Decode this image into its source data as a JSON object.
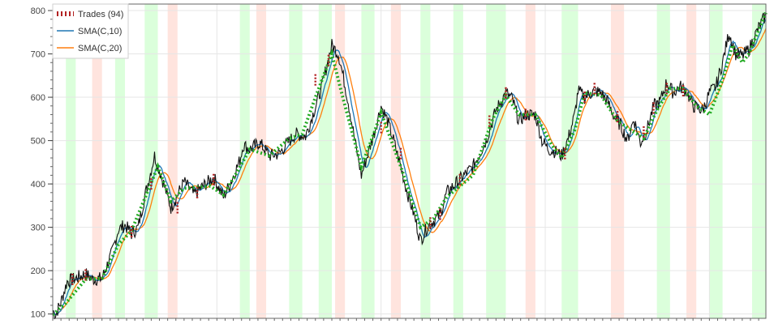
{
  "chart_data": {
    "type": "line",
    "title": "",
    "xlabel": "",
    "ylabel": "",
    "ylim": [
      90,
      815
    ],
    "y_ticks": [
      100,
      200,
      300,
      400,
      500,
      600,
      700,
      800
    ],
    "y_tick_labels": [
      "100",
      "200",
      "300",
      "400",
      "500",
      "600",
      "700",
      "800"
    ],
    "grid": true,
    "legend_position": "top-left",
    "legend": [
      {
        "label": "Trades (94)",
        "color": "#b22222",
        "style": "dashed"
      },
      {
        "label": "SMA(C,10)",
        "color": "#1f77b4",
        "style": "solid"
      },
      {
        "label": "SMA(C,20)",
        "color": "#ff7f0e",
        "style": "solid"
      }
    ],
    "price_path": [
      [
        0,
        108
      ],
      [
        0.004,
        98
      ],
      [
        0.012,
        125
      ],
      [
        0.022,
        175
      ],
      [
        0.035,
        182
      ],
      [
        0.05,
        193
      ],
      [
        0.06,
        180
      ],
      [
        0.075,
        182
      ],
      [
        0.09,
        240
      ],
      [
        0.1,
        295
      ],
      [
        0.11,
        305
      ],
      [
        0.12,
        285
      ],
      [
        0.13,
        300
      ],
      [
        0.14,
        370
      ],
      [
        0.155,
        465
      ],
      [
        0.165,
        420
      ],
      [
        0.18,
        345
      ],
      [
        0.2,
        405
      ],
      [
        0.215,
        375
      ],
      [
        0.225,
        390
      ],
      [
        0.245,
        415
      ],
      [
        0.26,
        370
      ],
      [
        0.27,
        400
      ],
      [
        0.285,
        455
      ],
      [
        0.29,
        490
      ],
      [
        0.3,
        480
      ],
      [
        0.315,
        495
      ],
      [
        0.33,
        465
      ],
      [
        0.345,
        470
      ],
      [
        0.355,
        490
      ],
      [
        0.37,
        515
      ],
      [
        0.385,
        510
      ],
      [
        0.395,
        555
      ],
      [
        0.41,
        625
      ],
      [
        0.42,
        690
      ],
      [
        0.425,
        720
      ],
      [
        0.435,
        700
      ],
      [
        0.44,
        665
      ],
      [
        0.45,
        590
      ],
      [
        0.46,
        500
      ],
      [
        0.47,
        420
      ],
      [
        0.48,
        470
      ],
      [
        0.49,
        520
      ],
      [
        0.5,
        580
      ],
      [
        0.51,
        545
      ],
      [
        0.52,
        495
      ],
      [
        0.53,
        440
      ],
      [
        0.54,
        380
      ],
      [
        0.55,
        330
      ],
      [
        0.56,
        270
      ],
      [
        0.57,
        300
      ],
      [
        0.58,
        315
      ],
      [
        0.59,
        330
      ],
      [
        0.6,
        380
      ],
      [
        0.62,
        410
      ],
      [
        0.64,
        440
      ],
      [
        0.66,
        500
      ],
      [
        0.675,
        570
      ],
      [
        0.69,
        610
      ],
      [
        0.7,
        595
      ],
      [
        0.71,
        545
      ],
      [
        0.72,
        560
      ],
      [
        0.735,
        560
      ],
      [
        0.745,
        500
      ],
      [
        0.755,
        480
      ],
      [
        0.765,
        475
      ],
      [
        0.775,
        465
      ],
      [
        0.785,
        505
      ],
      [
        0.795,
        560
      ],
      [
        0.8,
        615
      ],
      [
        0.81,
        600
      ],
      [
        0.825,
        615
      ],
      [
        0.835,
        610
      ],
      [
        0.845,
        590
      ],
      [
        0.855,
        555
      ],
      [
        0.865,
        535
      ],
      [
        0.875,
        500
      ],
      [
        0.885,
        550
      ],
      [
        0.895,
        495
      ],
      [
        0.905,
        525
      ],
      [
        0.915,
        580
      ],
      [
        0.925,
        590
      ],
      [
        0.935,
        635
      ],
      [
        0.945,
        610
      ],
      [
        0.955,
        625
      ],
      [
        0.965,
        615
      ],
      [
        0.975,
        580
      ],
      [
        0.99,
        570
      ],
      [
        1.0,
        610
      ],
      [
        1.01,
        625
      ],
      [
        1.02,
        680
      ],
      [
        1.03,
        750
      ],
      [
        1.04,
        700
      ],
      [
        1.05,
        695
      ],
      [
        1.06,
        710
      ],
      [
        1.075,
        760
      ],
      [
        1.086,
        790
      ]
    ],
    "trend_line": [
      [
        0,
        98
      ],
      [
        0.02,
        125
      ],
      [
        0.05,
        180
      ],
      [
        0.075,
        182
      ],
      [
        0.1,
        260
      ],
      [
        0.12,
        292
      ],
      [
        0.16,
        440
      ],
      [
        0.18,
        360
      ],
      [
        0.2,
        390
      ],
      [
        0.24,
        395
      ],
      [
        0.26,
        375
      ],
      [
        0.28,
        425
      ],
      [
        0.3,
        480
      ],
      [
        0.33,
        465
      ],
      [
        0.36,
        505
      ],
      [
        0.38,
        515
      ],
      [
        0.4,
        600
      ],
      [
        0.425,
        700
      ],
      [
        0.44,
        610
      ],
      [
        0.47,
        440
      ],
      [
        0.49,
        520
      ],
      [
        0.5,
        565
      ],
      [
        0.53,
        440
      ],
      [
        0.56,
        300
      ],
      [
        0.58,
        320
      ],
      [
        0.6,
        370
      ],
      [
        0.64,
        420
      ],
      [
        0.67,
        550
      ],
      [
        0.69,
        605
      ],
      [
        0.71,
        560
      ],
      [
        0.735,
        560
      ],
      [
        0.76,
        490
      ],
      [
        0.775,
        460
      ],
      [
        0.795,
        525
      ],
      [
        0.81,
        610
      ],
      [
        0.835,
        605
      ],
      [
        0.86,
        545
      ],
      [
        0.885,
        520
      ],
      [
        0.9,
        505
      ],
      [
        0.92,
        570
      ],
      [
        0.94,
        620
      ],
      [
        0.96,
        620
      ],
      [
        0.98,
        580
      ],
      [
        1.0,
        560
      ],
      [
        1.02,
        640
      ],
      [
        1.035,
        720
      ],
      [
        1.05,
        680
      ],
      [
        1.06,
        700
      ],
      [
        1.086,
        795
      ]
    ],
    "positive_regions": [
      [
        0.02,
        0.035
      ],
      [
        0.095,
        0.11
      ],
      [
        0.14,
        0.16
      ],
      [
        0.285,
        0.3
      ],
      [
        0.36,
        0.38
      ],
      [
        0.405,
        0.425
      ],
      [
        0.47,
        0.49
      ],
      [
        0.56,
        0.575
      ],
      [
        0.61,
        0.625
      ],
      [
        0.66,
        0.69
      ],
      [
        0.775,
        0.8
      ],
      [
        0.92,
        0.94
      ],
      [
        1.0,
        1.02
      ],
      [
        1.065,
        1.086
      ]
    ],
    "negative_regions": [
      [
        0.06,
        0.075
      ],
      [
        0.175,
        0.19
      ],
      [
        0.31,
        0.325
      ],
      [
        0.43,
        0.445
      ],
      [
        0.515,
        0.53
      ],
      [
        0.72,
        0.735
      ],
      [
        0.85,
        0.87
      ],
      [
        0.965,
        0.98
      ]
    ],
    "trade_markers": [
      [
        0.03,
        180
      ],
      [
        0.05,
        190
      ],
      [
        0.12,
        290
      ],
      [
        0.15,
        400
      ],
      [
        0.19,
        345
      ],
      [
        0.22,
        380
      ],
      [
        0.245,
        410
      ],
      [
        0.4,
        640
      ],
      [
        0.42,
        685
      ],
      [
        0.5,
        530
      ],
      [
        0.53,
        470
      ],
      [
        0.575,
        310
      ],
      [
        0.59,
        330
      ],
      [
        0.62,
        410
      ],
      [
        0.665,
        545
      ],
      [
        0.69,
        610
      ],
      [
        0.72,
        560
      ],
      [
        0.78,
        470
      ],
      [
        0.81,
        600
      ],
      [
        0.825,
        620
      ],
      [
        0.86,
        555
      ],
      [
        0.9,
        520
      ],
      [
        0.915,
        575
      ],
      [
        0.935,
        620
      ],
      [
        0.96,
        615
      ]
    ]
  }
}
